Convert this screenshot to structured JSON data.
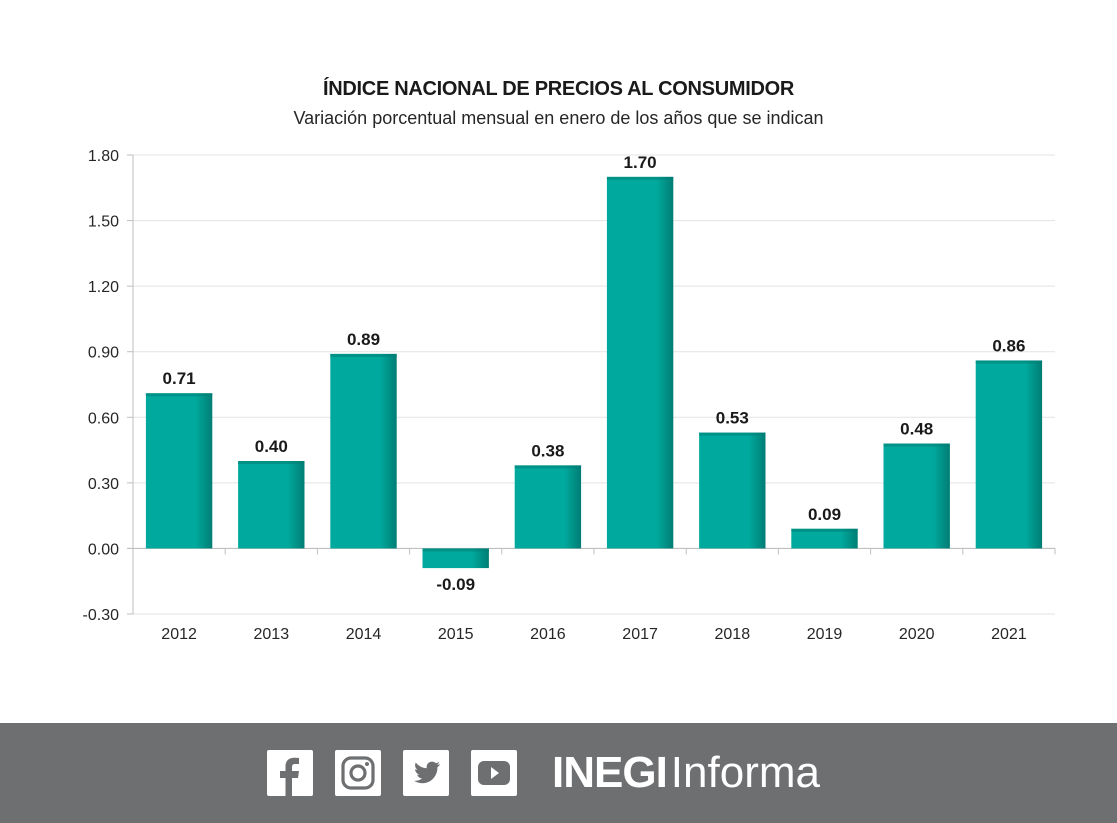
{
  "chart_data": {
    "type": "bar",
    "title": "ÍNDICE NACIONAL DE PRECIOS AL CONSUMIDOR",
    "subtitle": "Variación porcentual mensual en enero de los años que se indican",
    "xlabel": "",
    "ylabel": "",
    "categories": [
      "2012",
      "2013",
      "2014",
      "2015",
      "2016",
      "2017",
      "2018",
      "2019",
      "2020",
      "2021"
    ],
    "values": [
      0.71,
      0.4,
      0.89,
      -0.09,
      0.38,
      1.7,
      0.53,
      0.09,
      0.48,
      0.86
    ],
    "data_labels": [
      "0.71",
      "0.40",
      "0.89",
      "-0.09",
      "0.38",
      "1.70",
      "0.53",
      "0.09",
      "0.48",
      "0.86"
    ],
    "ylim": [
      -0.3,
      1.8
    ],
    "yticks": [
      -0.3,
      0.0,
      0.3,
      0.6,
      0.9,
      1.2,
      1.5,
      1.8
    ],
    "ytick_labels": [
      "-0.30",
      "0.00",
      "0.30",
      "0.60",
      "0.90",
      "1.20",
      "1.50",
      "1.80"
    ],
    "grid": true,
    "legend": "none",
    "bar_color": "#00a99d",
    "bar_shade_color": "#007d74"
  },
  "footer": {
    "background": "#6d6f71",
    "social_icons": [
      "facebook-icon",
      "instagram-icon",
      "twitter-icon",
      "youtube-icon"
    ],
    "brand_bold": "INEGI",
    "brand_regular": "Informa"
  }
}
